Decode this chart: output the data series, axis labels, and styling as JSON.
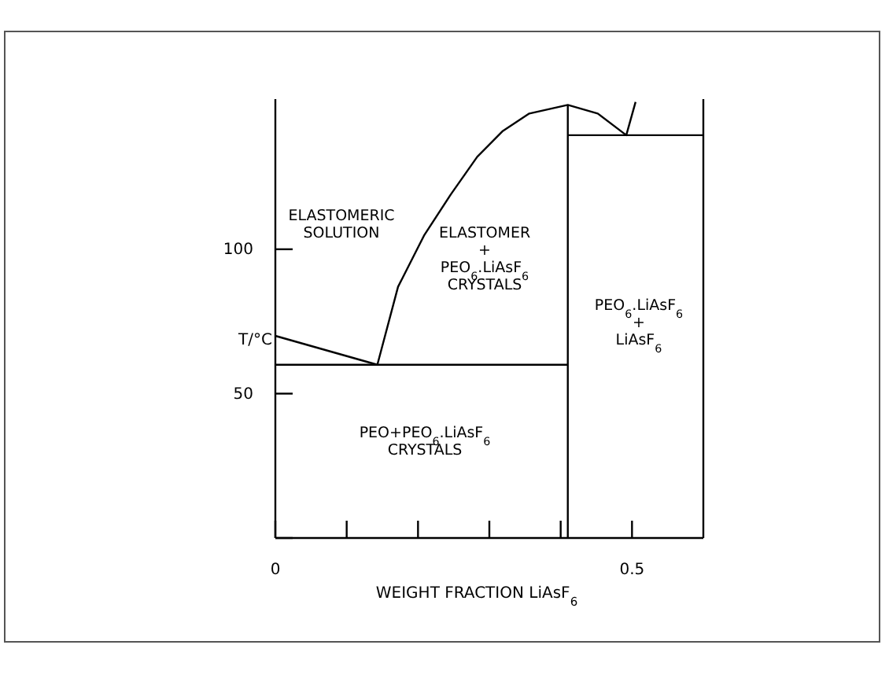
{
  "chart_data": {
    "type": "line",
    "xlabel": "WEIGHT FRACTION LiAsF$_{6}$",
    "ylabel": "T/°C",
    "xlim": [
      0,
      0.6
    ],
    "ylim": [
      0,
      152
    ],
    "xticks": [
      0,
      {
        "value": 0.1,
        "label": null
      },
      {
        "value": 0.2,
        "label": null
      },
      {
        "value": 0.3,
        "label": null
      },
      {
        "value": 0.4,
        "label": null
      },
      0.5
    ],
    "yticks": [
      {
        "value": 0,
        "label": null
      },
      50,
      100
    ],
    "grid": false,
    "marker": "none",
    "line_style": "solid",
    "series": [
      {
        "color": "#000000",
        "x": [
          0,
          0.143
        ],
        "values": [
          70,
          60
        ]
      },
      {
        "color": "#000000",
        "x": [
          0,
          0.41
        ],
        "values": [
          60,
          60
        ]
      },
      {
        "color": "#000000",
        "x": [
          0.143,
          0.172,
          0.209,
          0.246,
          0.283,
          0.319,
          0.356,
          0.41,
          0.452,
          0.492,
          0.505
        ],
        "values": [
          60,
          87,
          105,
          119,
          132,
          141,
          147,
          150,
          147,
          139.5,
          151
        ]
      },
      {
        "color": "#000000",
        "x": [
          0.41,
          0.6
        ],
        "values": [
          139.5,
          139.5
        ]
      },
      {
        "color": "#000000",
        "x": [
          0.41,
          0.41
        ],
        "values": [
          0,
          150
        ]
      }
    ],
    "annotations": [
      "ELASTOMERIC\nSOLUTION",
      "ELASTOMER\n+\nPEO$_{6}$.LiAsF$_{6}$\nCRYSTALS",
      "PEO$_{6}$.LiAsF$_{6}$\n+\nLiAsF$_{6}$",
      "PEO+PEO$_{6}$.LiAsF$_{6}$\nCRYSTALS"
    ]
  }
}
